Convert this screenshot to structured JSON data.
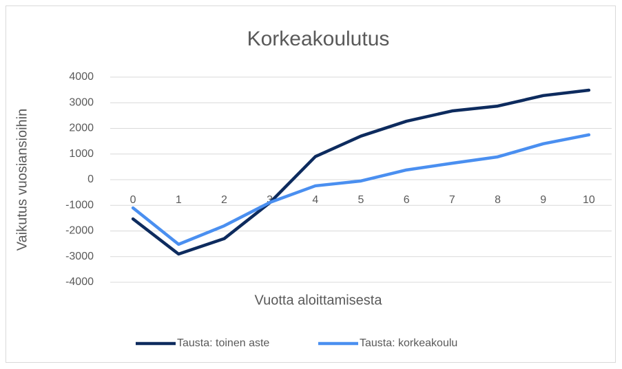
{
  "chart_data": {
    "type": "line",
    "title": "Korkeakoulutus",
    "x_label": "Vuotta aloittamisesta",
    "y_label": "Vaikutus vuosiansioihin",
    "categories": [
      "0",
      "1",
      "2",
      "3",
      "4",
      "5",
      "6",
      "7",
      "8",
      "9",
      "10"
    ],
    "series": [
      {
        "name": "Tausta: toinen aste",
        "color": "#0d2b5e",
        "values": [
          -1530,
          -2900,
          -2300,
          -900,
          900,
          1700,
          2280,
          2680,
          2870,
          3280,
          3490
        ]
      },
      {
        "name": "Tausta: korkeakoulu",
        "color": "#4a8ff0",
        "values": [
          -1100,
          -2520,
          -1800,
          -890,
          -240,
          -50,
          380,
          640,
          890,
          1400,
          1750
        ]
      }
    ],
    "ylim": [
      -4000,
      4000
    ],
    "yticks": [
      -4000,
      -3000,
      -2000,
      -1000,
      0,
      1000,
      2000,
      3000,
      4000
    ],
    "grid": true,
    "legend": "bottom"
  }
}
